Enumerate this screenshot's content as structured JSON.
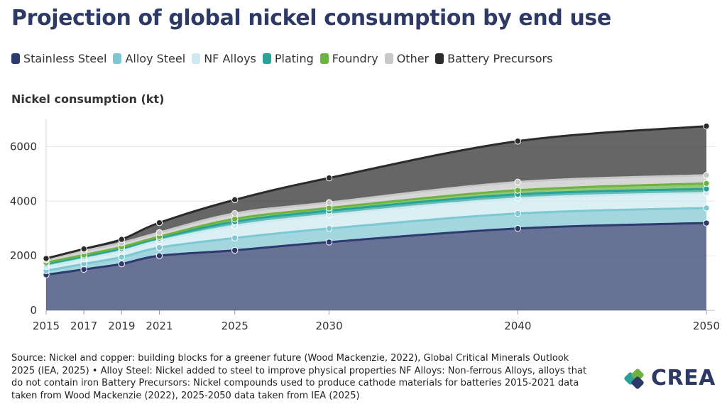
{
  "title": "Projection of global nickel consumption by end use",
  "y_axis_title": "Nickel consumption (kt)",
  "source": "Source: Nickel and copper: building blocks for a greener future (Wood Mackenzie, 2022), Global Critical Minerals Outlook 2025 (IEA, 2025) • Alloy Steel: Nickel added to steel to improve physical properties NF Alloys: Non-ferrous Alloys, alloys that do not contain iron Battery Precursors: Nickel compounds used to produce cathode materials for batteries 2015-2021 data taken from Wood Mackenzie (2022), 2025-2050 data taken from IEA (2025)",
  "logo": {
    "text": "CREA",
    "colors": [
      "#2aa198",
      "#6cb33f",
      "#2e3a66"
    ]
  },
  "chart_data": {
    "type": "area",
    "stacked": true,
    "x": [
      2015,
      2017,
      2019,
      2021,
      2025,
      2030,
      2040,
      2050
    ],
    "xticks": [
      "2015",
      "2017",
      "2019",
      "2021",
      "2025",
      "2030",
      "2040",
      "2050"
    ],
    "yticks": [
      "0",
      "2000",
      "4000",
      "6000"
    ],
    "ylim": [
      0,
      7000
    ],
    "grid": true,
    "legend_position": "top",
    "series": [
      {
        "name": "Stainless Steel",
        "color": "#2e3a6e",
        "values": [
          1300,
          1500,
          1700,
          2000,
          2200,
          2500,
          3000,
          3200
        ]
      },
      {
        "name": "Alloy Steel",
        "color": "#7ec8d3",
        "values": [
          150,
          200,
          250,
          300,
          450,
          500,
          550,
          550
        ]
      },
      {
        "name": "NF Alloys",
        "color": "#cdeaf0",
        "values": [
          150,
          180,
          220,
          250,
          450,
          500,
          550,
          550
        ]
      },
      {
        "name": "Plating",
        "color": "#27a39a",
        "values": [
          100,
          100,
          100,
          100,
          150,
          150,
          150,
          150
        ]
      },
      {
        "name": "Foundry",
        "color": "#6cb33f",
        "values": [
          50,
          50,
          50,
          50,
          100,
          100,
          150,
          200
        ]
      },
      {
        "name": "Other",
        "color": "#c8c8c8",
        "values": [
          100,
          150,
          150,
          150,
          200,
          200,
          300,
          300
        ]
      },
      {
        "name": "Battery Precursors",
        "color": "#2b2b2b",
        "values": [
          50,
          70,
          130,
          360,
          500,
          900,
          1500,
          1800
        ]
      }
    ]
  }
}
